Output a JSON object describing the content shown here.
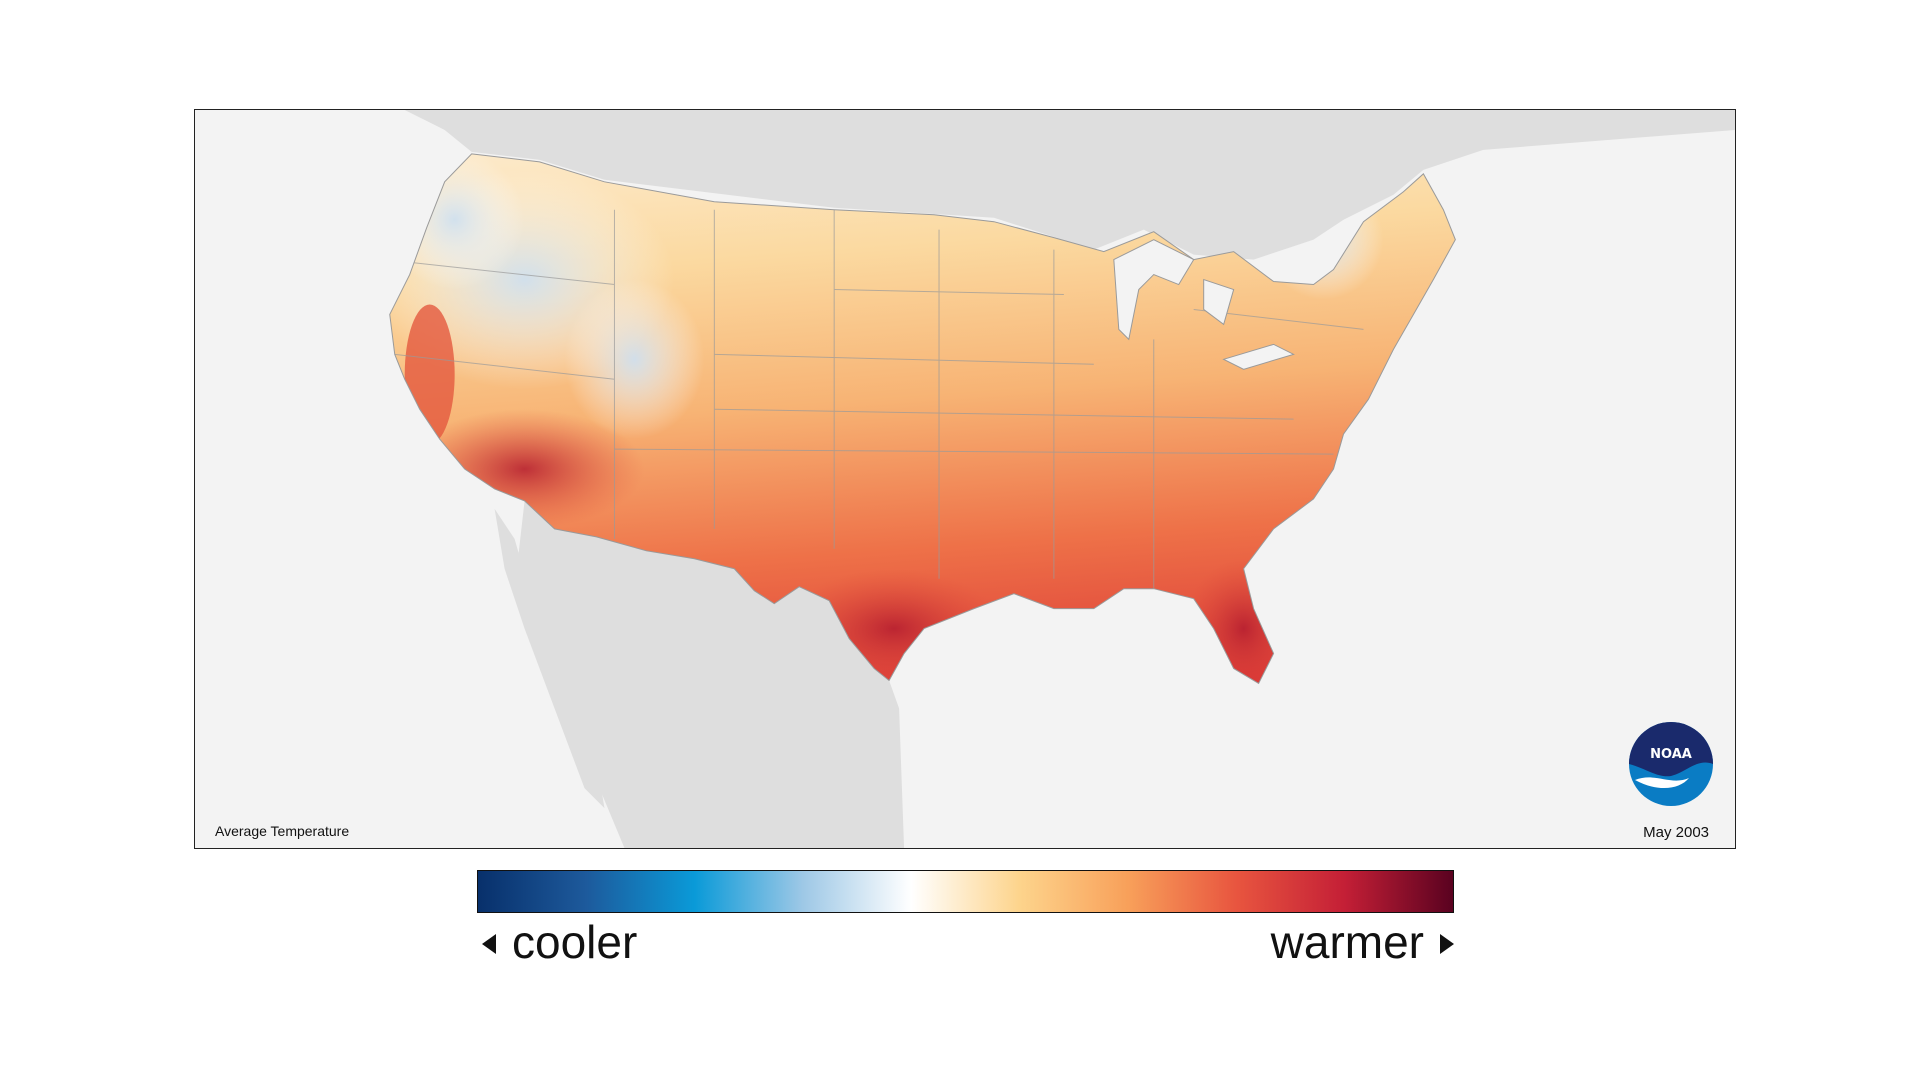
{
  "map": {
    "title": "Average Temperature",
    "date": "May 2003",
    "logo_text": "NOAA",
    "colors": {
      "background": "#f3f3f3",
      "land_outside": "#dedede",
      "border": "#9a9a9a"
    }
  },
  "legend": {
    "cool_label": "cooler",
    "warm_label": "warmer",
    "gradient_stops": [
      "#08306b",
      "#1d5a9c",
      "#0a9ad8",
      "#9ec8e6",
      "#ffffff",
      "#fdd48c",
      "#f8a05a",
      "#e8553f",
      "#c41f36",
      "#5a0220"
    ]
  }
}
